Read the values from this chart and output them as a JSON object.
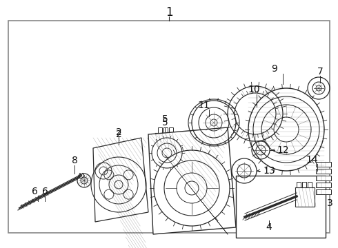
{
  "bg_color": "#ffffff",
  "border_color": "#888888",
  "line_color": "#2a2a2a",
  "label_color": "#111111",
  "font_size": 10,
  "figsize": [
    4.9,
    3.6
  ],
  "dpi": 100
}
